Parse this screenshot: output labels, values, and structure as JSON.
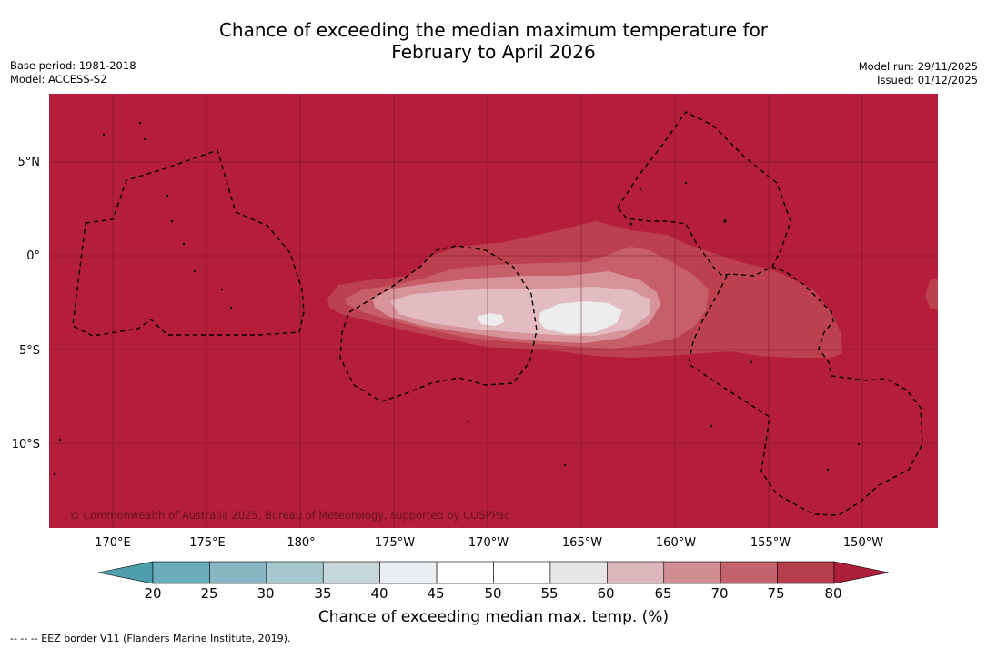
{
  "title_line1": "Chance of exceeding the median maximum temperature for",
  "title_line2": "February to April 2026",
  "meta_left": {
    "base_period": "Base period: 1981-2018",
    "model": "Model: ACCESS-S2"
  },
  "meta_right": {
    "model_run": "Model run: 29/11/2025",
    "issued": "Issued: 01/12/2025"
  },
  "lat_labels": [
    "5°N",
    "0°",
    "5°S",
    "10°S"
  ],
  "lon_labels": [
    "170°E",
    "175°E",
    "180°",
    "175°W",
    "170°W",
    "165°W",
    "160°W",
    "155°W",
    "150°W"
  ],
  "copyright": "© Commonwealth of Australia 2025, Bureau of Meteorology, supported by COSPPac",
  "colorbar": {
    "label": "Chance of exceeding median max. temp. (%)",
    "ticks": [
      "20",
      "25",
      "30",
      "35",
      "40",
      "45",
      "50",
      "55",
      "60",
      "65",
      "70",
      "75",
      "80"
    ],
    "colors": [
      "#6aaebc",
      "#87b6c2",
      "#a6c7cc",
      "#c6d6da",
      "#eaeef0",
      "#ffffff",
      "#ffffff",
      "#e8e6e7",
      "#ddb6bb",
      "#d18d93",
      "#c4636d",
      "#b63d4b"
    ],
    "under_color": "#4f9eae",
    "over_color": "#ad1e38"
  },
  "map_colors": {
    "background": "#b41e3a",
    "c75": "#bd404f",
    "c70": "#c65f69",
    "c65": "#d6939a",
    "c60": "#e2bcc0",
    "c55": "#ededed"
  },
  "eez_note": "--  --  -- EEZ border V11 (Flanders Marine Institute, 2019)."
}
